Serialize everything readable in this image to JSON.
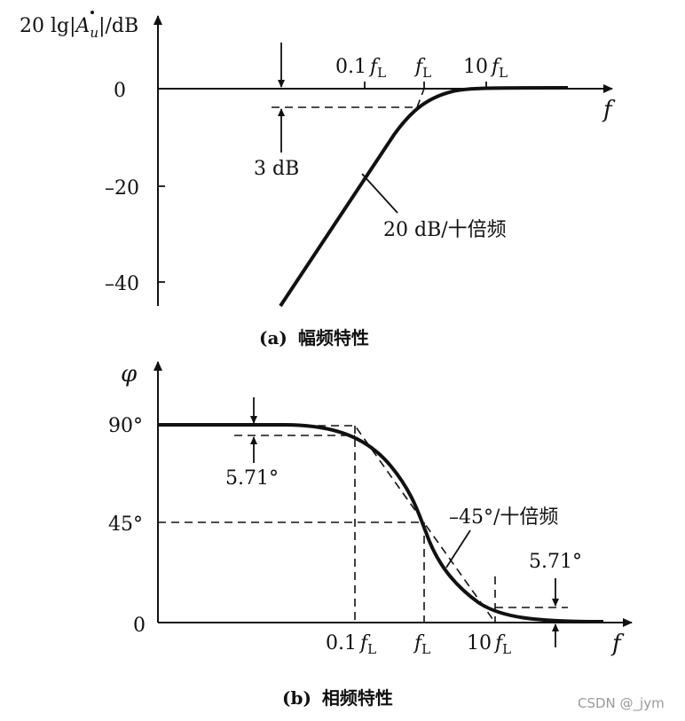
{
  "magnitude_panel": {
    "y_axis_label_prefix": "20 lg|",
    "y_axis_label_symbol": "A",
    "y_axis_label_subscript": "u",
    "y_axis_label_suffix": "|/dB",
    "x_axis_label": "f",
    "y_ticks": [
      "0",
      "–20",
      "–40"
    ],
    "freq_labels": [
      {
        "coef": "0.1",
        "f": "f",
        "sub": "L"
      },
      {
        "coef": "",
        "f": "f",
        "sub": "L"
      },
      {
        "coef": "10",
        "f": "f",
        "sub": "L"
      }
    ],
    "drop_annotation": "3 dB",
    "slope_annotation": "20 dB/十倍频",
    "caption_letter": "(a)",
    "caption_text": "幅频特性"
  },
  "phase_panel": {
    "y_axis_label": "φ",
    "x_axis_label": "f",
    "y_ticks": [
      "90°",
      "45°",
      "0"
    ],
    "freq_labels": [
      {
        "coef": "0.1",
        "f": "f",
        "sub": "L"
      },
      {
        "coef": "",
        "f": "f",
        "sub": "L"
      },
      {
        "coef": "10",
        "f": "f",
        "sub": "L"
      }
    ],
    "offset_annotation_left": "5.71°",
    "offset_annotation_right": "5.71°",
    "slope_annotation": "–45°/十倍频",
    "caption_letter": "(b)",
    "caption_text": "相频特性"
  },
  "watermark": "CSDN @_jym",
  "colors": {
    "ink": "#111111",
    "watermark": "#9a9a9a",
    "background": "#ffffff"
  }
}
